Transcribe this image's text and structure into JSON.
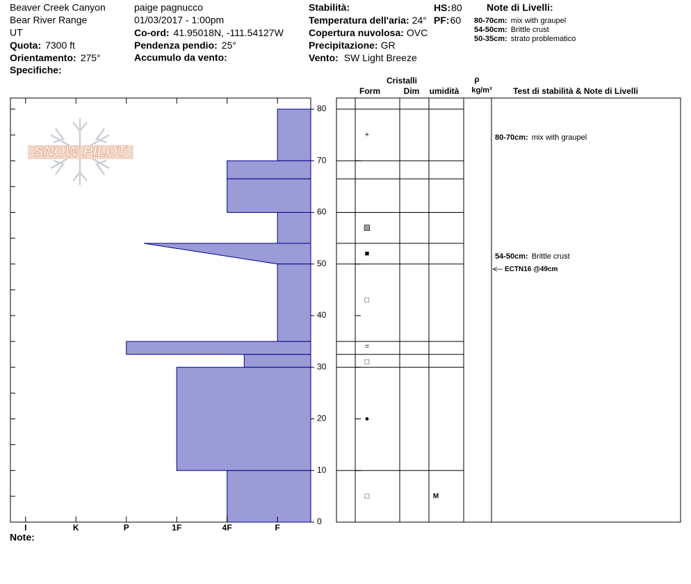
{
  "site": {
    "location": [
      "Beaver Creek Canyon",
      "Bear River Range",
      "UT"
    ],
    "fields": [
      {
        "label": "Quota:",
        "value": "7300 ft"
      },
      {
        "label": "Orientamento:",
        "value": "275°"
      },
      {
        "label": "Specifiche:"
      }
    ]
  },
  "observation": {
    "observer": "paige pagnucco",
    "datetime": "01/03/2017 - 1:00pm",
    "fields": [
      {
        "label": "Co-ord:",
        "value": "41.95018N, -111.54127W"
      },
      {
        "label": "Pendenza pendio:",
        "value": "25°"
      },
      {
        "label": "Accumulo da vento:"
      }
    ]
  },
  "conditions": {
    "stability": "Stabilità:",
    "hs": {
      "label": "HS:",
      "value": "80"
    },
    "pf": {
      "label": "PF:",
      "value": "60"
    },
    "fields": [
      {
        "label": "Temperatura dell'aria:",
        "value": "24°"
      },
      {
        "label": "Copertura nuvolosa:",
        "value": "OVC"
      },
      {
        "label": "Precipitazione:",
        "value": "GR"
      },
      {
        "label": "Vento:",
        "value": "SW Light Breeze"
      }
    ]
  },
  "layer_notes": {
    "title": "Note di Livelli:",
    "items": [
      {
        "range": "80-70cm:",
        "text": "mix with graupel"
      },
      {
        "range": "54-50cm:",
        "text": "Brittle crust"
      },
      {
        "range": "50-35cm:",
        "text": "strato problematico"
      }
    ]
  },
  "watermark": "SNOW PILOT",
  "footer": "Note:",
  "chart_data": {
    "type": "snow-profile",
    "color": "#9b9bd7",
    "edge_color": "#00008b",
    "xlim": [
      6.3,
      0.34
    ],
    "xticks": [
      {
        "value": 6,
        "label": "I"
      },
      {
        "value": 5,
        "label": "K"
      },
      {
        "value": 4,
        "label": "P"
      },
      {
        "value": 3,
        "label": "1F"
      },
      {
        "value": 2,
        "label": "4F"
      },
      {
        "value": 1,
        "label": "F"
      }
    ],
    "ylim": [
      0,
      80
    ],
    "yticks": [
      0,
      10,
      20,
      30,
      40,
      50,
      60,
      70,
      80
    ],
    "yminorticks": [
      5,
      15,
      25,
      35,
      45,
      55,
      65,
      75
    ],
    "layers": [
      {
        "top": 80,
        "bottom": 70,
        "hardness": [
          1,
          1
        ]
      },
      {
        "top": 70,
        "bottom": 66.5,
        "hardness": [
          2,
          2
        ]
      },
      {
        "top": 66.5,
        "bottom": 60,
        "hardness": [
          2,
          2
        ]
      },
      {
        "top": 60,
        "bottom": 54,
        "hardness": [
          1,
          1
        ]
      },
      {
        "top": 54,
        "bottom": 50,
        "hardness": [
          3.65,
          1
        ]
      },
      {
        "top": 50,
        "bottom": 35,
        "hardness": [
          1,
          1
        ]
      },
      {
        "top": 35,
        "bottom": 32.5,
        "hardness": [
          4,
          4
        ]
      },
      {
        "top": 32.5,
        "bottom": 30,
        "hardness": [
          1.66,
          1.66
        ]
      },
      {
        "top": 30,
        "bottom": 10,
        "hardness": [
          3,
          3
        ]
      },
      {
        "top": 10,
        "bottom": 0,
        "hardness": [
          2,
          2
        ]
      }
    ],
    "columns": {
      "group": "Cristalli",
      "form": "Form",
      "size": "Dim",
      "moisture": "umidità",
      "density": "ρ",
      "density_unit": "kg/m³",
      "notes": "Test di stabilità & Note di Livelli"
    },
    "grains": [
      {
        "height": 75,
        "form": "+"
      },
      {
        "height": 57,
        "form": "▨"
      },
      {
        "height": 52,
        "form": "■"
      },
      {
        "height": 43,
        "form": "□"
      },
      {
        "height": 34,
        "form": "="
      },
      {
        "height": 31,
        "form": "□"
      },
      {
        "height": 20,
        "form": "●"
      },
      {
        "height": 5,
        "form": "□"
      }
    ],
    "moisture": [
      {
        "height": 5,
        "text": "M"
      }
    ],
    "notes": [
      {
        "top": 80,
        "bottom": 70,
        "range": "80-70cm:",
        "text": "mix with graupel"
      },
      {
        "top": 54,
        "bottom": 50,
        "range": "54-50cm:",
        "text": "Brittle crust"
      }
    ],
    "stability_tests": [
      {
        "height": 49,
        "label": "ECTN16 @49cm"
      }
    ]
  }
}
